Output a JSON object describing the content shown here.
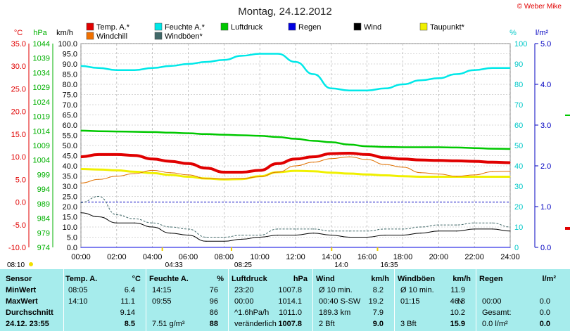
{
  "chart_data": {
    "type": "line",
    "title": "Montag, 24.12.2012",
    "copyright": "© Weber Mike",
    "axis_units": {
      "left_temp": "°C",
      "left_hpa": "hPa",
      "left_kmh": "km/h",
      "right_pct": "%",
      "right_rain": "l/m²"
    },
    "axes": {
      "temp": {
        "unit": "°C",
        "range": [
          -10,
          35
        ],
        "ticks": [
          "35.0",
          "30.0",
          "25.0",
          "20.0",
          "15.0",
          "10.0",
          "5.0",
          "0.0",
          "-5.0",
          "-10.0"
        ],
        "color": "#e00000"
      },
      "pressure": {
        "unit": "hPa",
        "range": [
          974,
          1044
        ],
        "ticks": [
          "1044",
          "1039",
          "1034",
          "1029",
          "1024",
          "1019",
          "1014",
          "1009",
          "1004",
          "999",
          "994",
          "989",
          "984",
          "979",
          "974"
        ],
        "color": "#00b000"
      },
      "wind": {
        "unit": "km/h",
        "range": [
          0,
          100
        ],
        "ticks": [
          "100.0",
          "95.0",
          "90.0",
          "85.0",
          "80.0",
          "75.0",
          "70.0",
          "65.0",
          "60.0",
          "55.0",
          "50.0",
          "45.0",
          "40.0",
          "35.0",
          "30.0",
          "25.0",
          "20.0",
          "15.0",
          "10.0",
          "5.0",
          "0.0"
        ]
      },
      "humidity": {
        "unit": "%",
        "range": [
          0,
          100
        ],
        "ticks": [
          "100",
          "90",
          "80",
          "70",
          "60",
          "50",
          "40",
          "30",
          "20",
          "10",
          "0"
        ],
        "color": "#00c8c8"
      },
      "rain": {
        "unit": "l/m²",
        "range": [
          0,
          5
        ],
        "ticks": [
          "5.0",
          "4.0",
          "3.0",
          "2.0",
          "1.0",
          "0.0"
        ],
        "color": "#0000c0"
      }
    },
    "x_ticks": [
      "00:00",
      "02:00",
      "04:00",
      "06:00",
      "08:00",
      "10:00",
      "12:00",
      "14:00",
      "16:00",
      "18:00",
      "20:00",
      "22:00",
      "24:00"
    ],
    "sun_events": [
      {
        "time": "08:10",
        "label": "08:10"
      },
      {
        "time": "04:33",
        "label": "04:33"
      },
      {
        "time": "08:25",
        "label": "08:25"
      },
      {
        "time": "14:01",
        "label": "14:0"
      },
      {
        "time": "16:35",
        "label": "16:35"
      }
    ],
    "legend": [
      {
        "name": "Temp. A.*",
        "color": "#e00000"
      },
      {
        "name": "Feuchte A.*",
        "color": "#00e8e8"
      },
      {
        "name": "Luftdruck",
        "color": "#00c800"
      },
      {
        "name": "Regen",
        "color": "#0000e0"
      },
      {
        "name": "Wind",
        "color": "#000000"
      },
      {
        "name": "Taupunkt*",
        "color": "#f0f000"
      },
      {
        "name": "Windchill",
        "color": "#f07000"
      },
      {
        "name": "Windböen*",
        "color": "#406868"
      }
    ],
    "series": [
      {
        "name": "Temp. A.*",
        "axis": "temp",
        "x": [
          0,
          1,
          2,
          3,
          4,
          5,
          6,
          7,
          8,
          9,
          10,
          11,
          12,
          13,
          14,
          15,
          16,
          17,
          18,
          19,
          20,
          21,
          22,
          23,
          24
        ],
        "values": [
          10.0,
          10.5,
          10.5,
          10.3,
          9.5,
          9.0,
          8.5,
          7.5,
          6.6,
          6.6,
          7.0,
          8.5,
          9.5,
          10.0,
          10.7,
          10.8,
          10.5,
          9.8,
          9.5,
          9.3,
          9.2,
          9.1,
          9.0,
          8.8,
          8.7
        ]
      },
      {
        "name": "Feuchte A.*",
        "axis": "humidity",
        "x": [
          0,
          1,
          2,
          3,
          4,
          5,
          6,
          7,
          8,
          9,
          10,
          11,
          12,
          13,
          14,
          15,
          16,
          17,
          18,
          19,
          20,
          21,
          22,
          23,
          24
        ],
        "values": [
          89,
          88,
          87,
          87,
          88,
          89,
          90,
          91,
          92,
          94,
          95,
          95,
          91,
          85,
          78,
          77,
          77,
          78,
          80,
          82,
          83,
          85,
          87,
          88,
          88
        ]
      },
      {
        "name": "Luftdruck",
        "axis": "pressure",
        "x": [
          0,
          1,
          2,
          3,
          4,
          5,
          6,
          7,
          8,
          9,
          10,
          11,
          12,
          13,
          14,
          15,
          16,
          17,
          18,
          19,
          20,
          21,
          22,
          23,
          24
        ],
        "values": [
          1014.1,
          1013.9,
          1013.8,
          1013.7,
          1013.6,
          1013.4,
          1013.2,
          1012.9,
          1012.7,
          1012.5,
          1012.3,
          1011.9,
          1011.3,
          1010.6,
          1010.1,
          1009.3,
          1008.7,
          1008.5,
          1008.4,
          1008.4,
          1008.4,
          1008.3,
          1008.1,
          1007.9,
          1007.8
        ]
      },
      {
        "name": "Taupunkt*",
        "axis": "temp",
        "x": [
          0,
          1,
          2,
          3,
          4,
          5,
          6,
          7,
          8,
          9,
          10,
          11,
          12,
          13,
          14,
          15,
          16,
          17,
          18,
          19,
          20,
          21,
          22,
          23,
          24
        ],
        "values": [
          7.3,
          7.2,
          7.0,
          6.7,
          6.4,
          6.0,
          5.6,
          5.2,
          5.0,
          5.1,
          5.7,
          6.6,
          6.9,
          6.8,
          6.5,
          6.3,
          6.1,
          5.9,
          5.7,
          5.6,
          5.6,
          5.6,
          5.6,
          5.6,
          5.6
        ]
      },
      {
        "name": "Windchill",
        "axis": "temp",
        "x": [
          0,
          1,
          2,
          3,
          4,
          5,
          6,
          7,
          8,
          9,
          10,
          11,
          12,
          13,
          14,
          15,
          16,
          17,
          18,
          19,
          20,
          21,
          22,
          23,
          24
        ],
        "values": [
          4.2,
          5.0,
          5.7,
          6.3,
          7.0,
          6.5,
          6.0,
          5.2,
          5.1,
          5.2,
          5.6,
          6.6,
          8.0,
          8.8,
          9.6,
          10.0,
          9.4,
          8.3,
          7.7,
          6.5,
          6.2,
          5.7,
          6.0,
          6.7,
          6.8
        ]
      },
      {
        "name": "Wind",
        "axis": "wind",
        "x": [
          0,
          1,
          2,
          3,
          4,
          5,
          6,
          7,
          8,
          9,
          10,
          11,
          12,
          13,
          14,
          15,
          16,
          17,
          18,
          19,
          20,
          21,
          22,
          23,
          24
        ],
        "values": [
          17,
          15,
          12,
          12,
          10,
          7,
          6,
          3,
          3,
          4,
          5,
          6,
          6,
          7,
          6,
          5,
          5,
          6,
          6,
          7,
          8,
          8,
          9,
          9,
          8
        ]
      },
      {
        "name": "Windböen*",
        "axis": "wind",
        "x": [
          0,
          1,
          2,
          3,
          4,
          5,
          6,
          7,
          8,
          9,
          10,
          11,
          12,
          13,
          14,
          15,
          16,
          17,
          18,
          19,
          20,
          21,
          22,
          23,
          24
        ],
        "values": [
          22,
          25,
          16,
          14,
          12,
          10,
          9,
          5,
          5,
          6,
          6,
          9,
          9,
          9,
          8,
          8,
          8,
          9,
          9,
          10,
          11,
          11,
          12,
          12,
          10
        ]
      },
      {
        "name": "Regen",
        "axis": "rain",
        "x": [
          0,
          24
        ],
        "values": [
          0.0,
          0.0
        ]
      }
    ]
  },
  "table": {
    "columns": [
      {
        "header": "Sensor",
        "unit": ""
      },
      {
        "header": "Temp. A.",
        "unit": "°C"
      },
      {
        "header": "Feuchte A.",
        "unit": "%"
      },
      {
        "header": "Luftdruck",
        "unit": "hPa"
      },
      {
        "header": "Wind",
        "unit": "km/h"
      },
      {
        "header": "Windböen",
        "unit": "km/h"
      },
      {
        "header": "Regen",
        "unit": "l/m²"
      }
    ],
    "rows": [
      {
        "label": "MinWert",
        "cells": [
          [
            "08:05",
            "6.4"
          ],
          [
            "14:15",
            "76"
          ],
          [
            "23:20",
            "1007.8"
          ],
          [
            "Ø 10 min.",
            "8.2"
          ],
          [
            "Ø 10 min.",
            "11.9"
          ],
          [
            "",
            ""
          ]
        ]
      },
      {
        "label": "MaxWert",
        "cells": [
          [
            "14:10",
            "11.1"
          ],
          [
            "09:55",
            "96"
          ],
          [
            "00:00",
            "1014.1"
          ],
          [
            "00:40  S-SW",
            "19.2"
          ],
          [
            "01:15",
            "46.8"
          ],
          [
            "00:00",
            "0.0"
          ]
        ]
      },
      {
        "label": "Durchschnitt",
        "cells": [
          [
            "",
            "9.14"
          ],
          [
            "",
            "86"
          ],
          [
            "^1.6hPa/h",
            "1011.0"
          ],
          [
            "189.3 km",
            "7.9"
          ],
          [
            "",
            "10.2"
          ],
          [
            "Gesamt:",
            "0.0"
          ]
        ]
      },
      {
        "label": "24.12. 23:55",
        "cells": [
          [
            "",
            "8.5"
          ],
          [
            "7.51 g/m³",
            "88"
          ],
          [
            "veränderlich",
            "1007.8"
          ],
          [
            "2 Bft",
            "9.0"
          ],
          [
            "3 Bft",
            "15.9"
          ],
          [
            "0.0 l/m²",
            "0.0"
          ]
        ]
      }
    ],
    "wind_dir_extra": "N"
  }
}
